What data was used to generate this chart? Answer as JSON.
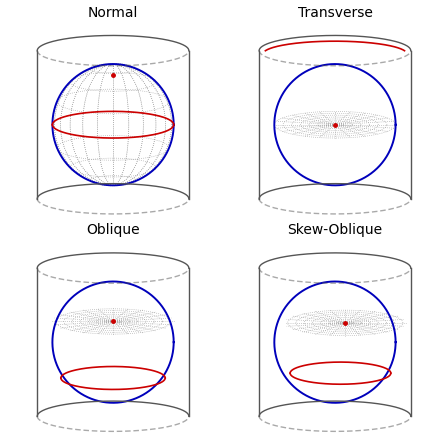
{
  "titles": [
    "Normal",
    "Transverse",
    "Oblique",
    "Skew-Oblique"
  ],
  "title_fontsize": 10,
  "cylinder_color": "#555555",
  "cylinder_lw": 1.0,
  "grid_color": "#999999",
  "grid_lw": 0.5,
  "sphere_color": "#0000bb",
  "sphere_lw": 1.4,
  "equator_color": "#cc0000",
  "equator_lw": 1.2,
  "pole_size": 3,
  "bg_color": "#ffffff",
  "figsize": [
    4.48,
    4.47
  ],
  "dpi": 100
}
